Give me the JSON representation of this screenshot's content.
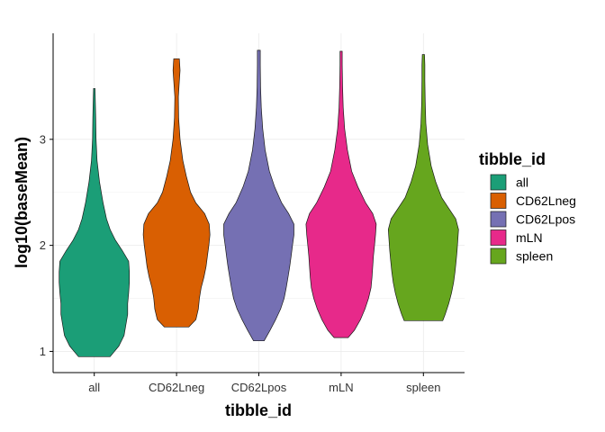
{
  "chart_data": {
    "type": "violin",
    "title": "",
    "xlabel": "tibble_id",
    "ylabel": "log10(baseMean)",
    "categories": [
      "all",
      "CD62Lneg",
      "CD62Lpos",
      "mLN",
      "spleen"
    ],
    "ylim": [
      0.8,
      4.0
    ],
    "yticks": [
      1,
      2,
      3
    ],
    "ytick_labels": [
      "1",
      "2",
      "3"
    ],
    "grid": true,
    "legend": {
      "title": "tibble_id",
      "position": "right",
      "entries": [
        "all",
        "CD62Lneg",
        "CD62Lpos",
        "mLN",
        "spleen"
      ]
    },
    "colors": [
      "#1b9e77",
      "#d95f02",
      "#7570b3",
      "#e7298a",
      "#66a61e"
    ],
    "series": [
      {
        "name": "all",
        "min": 0.95,
        "max": 3.48,
        "density": [
          [
            0.95,
            0.45
          ],
          [
            1.05,
            0.7
          ],
          [
            1.15,
            0.85
          ],
          [
            1.25,
            0.9
          ],
          [
            1.35,
            0.95
          ],
          [
            1.45,
            0.95
          ],
          [
            1.55,
            0.98
          ],
          [
            1.65,
            1.0
          ],
          [
            1.75,
            1.0
          ],
          [
            1.85,
            0.98
          ],
          [
            1.95,
            0.8
          ],
          [
            2.05,
            0.6
          ],
          [
            2.15,
            0.45
          ],
          [
            2.25,
            0.35
          ],
          [
            2.4,
            0.25
          ],
          [
            2.6,
            0.15
          ],
          [
            2.8,
            0.08
          ],
          [
            3.0,
            0.05
          ],
          [
            3.2,
            0.04
          ],
          [
            3.35,
            0.03
          ],
          [
            3.48,
            0.02
          ]
        ]
      },
      {
        "name": "CD62Lneg",
        "min": 1.23,
        "max": 3.76,
        "density": [
          [
            1.23,
            0.35
          ],
          [
            1.3,
            0.55
          ],
          [
            1.4,
            0.62
          ],
          [
            1.5,
            0.65
          ],
          [
            1.6,
            0.7
          ],
          [
            1.7,
            0.78
          ],
          [
            1.8,
            0.84
          ],
          [
            1.9,
            0.88
          ],
          [
            2.0,
            0.92
          ],
          [
            2.1,
            0.95
          ],
          [
            2.2,
            0.93
          ],
          [
            2.3,
            0.8
          ],
          [
            2.4,
            0.55
          ],
          [
            2.5,
            0.4
          ],
          [
            2.65,
            0.28
          ],
          [
            2.8,
            0.18
          ],
          [
            3.0,
            0.1
          ],
          [
            3.2,
            0.06
          ],
          [
            3.4,
            0.05
          ],
          [
            3.55,
            0.08
          ],
          [
            3.65,
            0.1
          ],
          [
            3.76,
            0.08
          ]
        ]
      },
      {
        "name": "CD62Lpos",
        "min": 1.1,
        "max": 3.84,
        "density": [
          [
            1.1,
            0.15
          ],
          [
            1.2,
            0.32
          ],
          [
            1.3,
            0.48
          ],
          [
            1.4,
            0.62
          ],
          [
            1.5,
            0.72
          ],
          [
            1.6,
            0.78
          ],
          [
            1.7,
            0.83
          ],
          [
            1.8,
            0.88
          ],
          [
            1.9,
            0.92
          ],
          [
            2.0,
            0.96
          ],
          [
            2.1,
            1.0
          ],
          [
            2.2,
            1.0
          ],
          [
            2.3,
            0.85
          ],
          [
            2.4,
            0.65
          ],
          [
            2.55,
            0.45
          ],
          [
            2.7,
            0.3
          ],
          [
            2.9,
            0.18
          ],
          [
            3.1,
            0.11
          ],
          [
            3.3,
            0.07
          ],
          [
            3.5,
            0.05
          ],
          [
            3.7,
            0.04
          ],
          [
            3.84,
            0.04
          ]
        ]
      },
      {
        "name": "mLN",
        "min": 1.13,
        "max": 3.83,
        "density": [
          [
            1.13,
            0.2
          ],
          [
            1.2,
            0.38
          ],
          [
            1.3,
            0.55
          ],
          [
            1.4,
            0.68
          ],
          [
            1.5,
            0.78
          ],
          [
            1.6,
            0.85
          ],
          [
            1.7,
            0.88
          ],
          [
            1.8,
            0.9
          ],
          [
            1.9,
            0.92
          ],
          [
            2.0,
            0.95
          ],
          [
            2.1,
            0.98
          ],
          [
            2.2,
            1.0
          ],
          [
            2.3,
            0.9
          ],
          [
            2.4,
            0.7
          ],
          [
            2.55,
            0.48
          ],
          [
            2.7,
            0.3
          ],
          [
            2.9,
            0.18
          ],
          [
            3.1,
            0.1
          ],
          [
            3.3,
            0.06
          ],
          [
            3.5,
            0.04
          ],
          [
            3.7,
            0.03
          ],
          [
            3.83,
            0.03
          ]
        ]
      },
      {
        "name": "spleen",
        "min": 1.29,
        "max": 3.8,
        "density": [
          [
            1.29,
            0.55
          ],
          [
            1.35,
            0.62
          ],
          [
            1.45,
            0.72
          ],
          [
            1.55,
            0.8
          ],
          [
            1.65,
            0.86
          ],
          [
            1.75,
            0.9
          ],
          [
            1.85,
            0.93
          ],
          [
            1.95,
            0.96
          ],
          [
            2.05,
            0.98
          ],
          [
            2.15,
            1.0
          ],
          [
            2.25,
            0.92
          ],
          [
            2.35,
            0.72
          ],
          [
            2.45,
            0.52
          ],
          [
            2.6,
            0.35
          ],
          [
            2.75,
            0.22
          ],
          [
            2.95,
            0.12
          ],
          [
            3.15,
            0.07
          ],
          [
            3.35,
            0.05
          ],
          [
            3.55,
            0.04
          ],
          [
            3.7,
            0.04
          ],
          [
            3.8,
            0.03
          ]
        ]
      }
    ]
  }
}
